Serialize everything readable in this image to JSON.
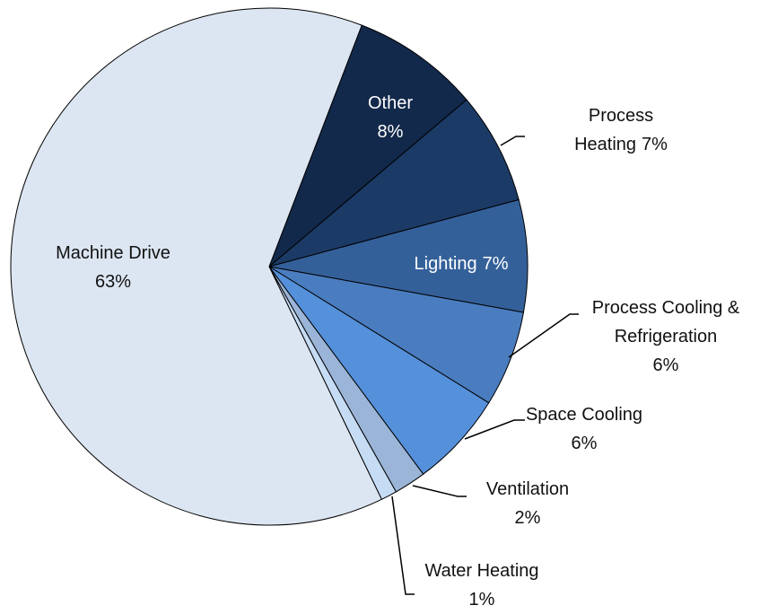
{
  "chart_data": {
    "type": "pie",
    "categories": [
      "Other",
      "Process Heating",
      "Lighting",
      "Process Cooling & Refrigeration",
      "Space Cooling",
      "Ventilation",
      "Water Heating",
      "Machine Drive"
    ],
    "values": [
      8,
      7,
      7,
      6,
      6,
      2,
      1,
      63
    ],
    "value_labels": [
      "8%",
      "7%",
      "7%",
      "6%",
      "6%",
      "2%",
      "1%",
      "63%"
    ],
    "colors": [
      "#13294b",
      "#1b3a66",
      "#34609a",
      "#4a7dbf",
      "#5590da",
      "#9bb5d8",
      "#c6dcf5",
      "#dce6f2"
    ]
  }
}
